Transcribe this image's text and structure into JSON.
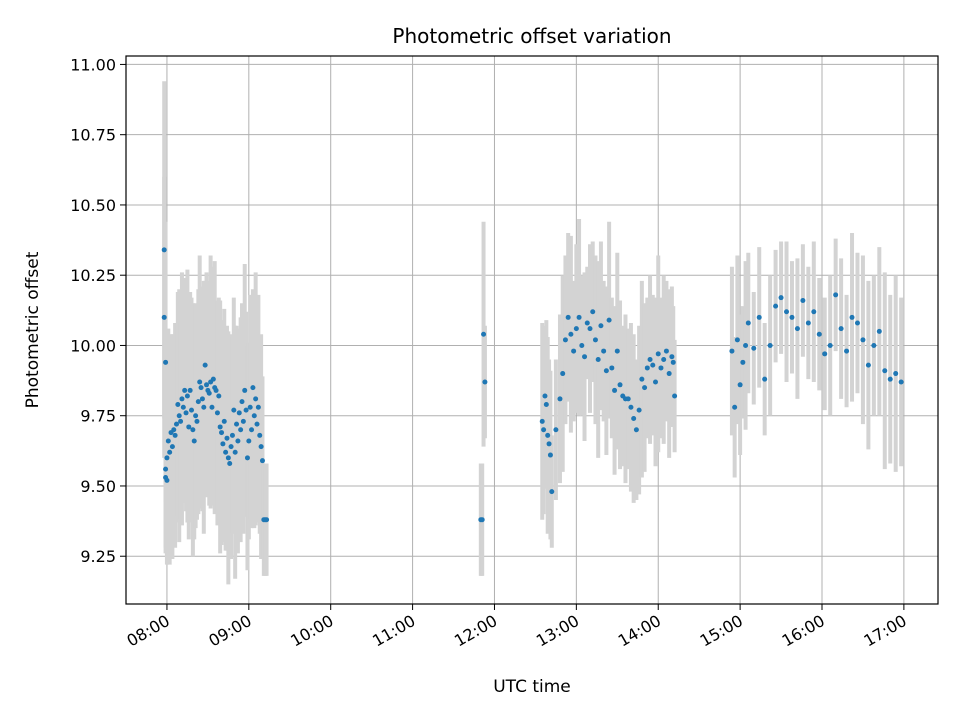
{
  "chart_data": {
    "type": "scatter",
    "title": "Photometric offset variation",
    "xlabel": "UTC time",
    "ylabel": "Photometric offset",
    "xlim": [
      "07:30",
      "17:25"
    ],
    "ylim": [
      9.08,
      11.03
    ],
    "x_ticks": [
      "08:00",
      "09:00",
      "10:00",
      "11:00",
      "12:00",
      "13:00",
      "14:00",
      "15:00",
      "16:00",
      "17:00"
    ],
    "y_ticks": [
      "9.25",
      "9.50",
      "9.75",
      "10.00",
      "10.25",
      "10.50",
      "10.75",
      "11.00"
    ],
    "grid": true,
    "marker_color": "#1f77b4",
    "errorbar_color": "#d3d3d3",
    "series": [
      {
        "x": [
          "07:58",
          "07:58",
          "07:59",
          "07:59",
          "07:59",
          "08:00",
          "08:00",
          "08:01",
          "08:02",
          "08:03",
          "08:04",
          "08:05",
          "08:06",
          "08:07",
          "08:08",
          "08:09",
          "08:10",
          "08:11",
          "08:12",
          "08:13",
          "08:14",
          "08:15",
          "08:16",
          "08:17",
          "08:18",
          "08:19",
          "08:20",
          "08:21",
          "08:22",
          "08:23",
          "08:24",
          "08:25",
          "08:26",
          "08:27",
          "08:28",
          "08:29",
          "08:30",
          "08:31",
          "08:32",
          "08:33",
          "08:34",
          "08:35",
          "08:36",
          "08:37",
          "08:38",
          "08:39",
          "08:40",
          "08:41",
          "08:42",
          "08:43",
          "08:44",
          "08:45",
          "08:46",
          "08:47",
          "08:48",
          "08:49",
          "08:50",
          "08:51",
          "08:52",
          "08:53",
          "08:54",
          "08:55",
          "08:56",
          "08:57",
          "08:58",
          "08:59",
          "09:00",
          "09:01",
          "09:02",
          "09:03",
          "09:04",
          "09:05",
          "09:06",
          "09:07",
          "09:08",
          "09:09",
          "09:10",
          "09:11",
          "09:12",
          "09:13",
          "11:50",
          "11:51",
          "11:52",
          "11:53",
          "12:35",
          "12:36",
          "12:37",
          "12:38",
          "12:39",
          "12:40",
          "12:41",
          "12:42",
          "12:45",
          "12:48",
          "12:50",
          "12:52",
          "12:54",
          "12:56",
          "12:58",
          "13:00",
          "13:02",
          "13:04",
          "13:06",
          "13:08",
          "13:10",
          "13:12",
          "13:14",
          "13:16",
          "13:18",
          "13:20",
          "13:22",
          "13:24",
          "13:26",
          "13:28",
          "13:30",
          "13:32",
          "13:34",
          "13:36",
          "13:38",
          "13:40",
          "13:42",
          "13:44",
          "13:46",
          "13:48",
          "13:50",
          "13:52",
          "13:54",
          "13:56",
          "13:58",
          "14:00",
          "14:02",
          "14:04",
          "14:06",
          "14:08",
          "14:10",
          "14:11",
          "14:12",
          "14:54",
          "14:56",
          "14:58",
          "15:00",
          "15:02",
          "15:04",
          "15:06",
          "15:10",
          "15:14",
          "15:18",
          "15:22",
          "15:26",
          "15:30",
          "15:34",
          "15:38",
          "15:42",
          "15:46",
          "15:50",
          "15:54",
          "15:58",
          "16:02",
          "16:06",
          "16:10",
          "16:14",
          "16:18",
          "16:22",
          "16:26",
          "16:30",
          "16:34",
          "16:38",
          "16:42",
          "16:46",
          "16:50",
          "16:54",
          "16:58"
        ],
        "y": [
          10.34,
          10.1,
          9.94,
          9.56,
          9.53,
          9.52,
          9.6,
          9.66,
          9.62,
          9.69,
          9.64,
          9.7,
          9.68,
          9.72,
          9.79,
          9.75,
          9.73,
          9.81,
          9.78,
          9.84,
          9.76,
          9.82,
          9.71,
          9.84,
          9.77,
          9.7,
          9.66,
          9.75,
          9.73,
          9.8,
          9.87,
          9.85,
          9.81,
          9.78,
          9.93,
          9.86,
          9.84,
          9.83,
          9.87,
          9.78,
          9.88,
          9.85,
          9.84,
          9.76,
          9.82,
          9.71,
          9.69,
          9.65,
          9.73,
          9.62,
          9.67,
          9.6,
          9.58,
          9.64,
          9.68,
          9.77,
          9.62,
          9.72,
          9.66,
          9.76,
          9.7,
          9.8,
          9.73,
          9.84,
          9.77,
          9.6,
          9.66,
          9.78,
          9.7,
          9.85,
          9.75,
          9.81,
          9.72,
          9.78,
          9.68,
          9.64,
          9.59,
          9.38,
          9.38,
          9.38,
          9.38,
          9.38,
          10.04,
          9.87,
          9.73,
          9.7,
          9.82,
          9.79,
          9.68,
          9.65,
          9.61,
          9.48,
          9.7,
          9.81,
          9.9,
          10.02,
          10.1,
          10.04,
          9.98,
          10.06,
          10.1,
          10.0,
          9.96,
          10.08,
          10.06,
          10.12,
          10.02,
          9.95,
          10.07,
          9.98,
          9.91,
          10.09,
          9.92,
          9.84,
          9.98,
          9.86,
          9.82,
          9.81,
          9.81,
          9.78,
          9.74,
          9.7,
          9.77,
          9.88,
          9.85,
          9.92,
          9.95,
          9.93,
          9.87,
          9.97,
          9.92,
          9.95,
          9.98,
          9.9,
          9.96,
          9.94,
          9.82,
          9.98,
          9.78,
          10.02,
          9.86,
          9.94,
          10.0,
          10.08,
          9.99,
          10.1,
          9.88,
          10.0,
          10.14,
          10.17,
          10.12,
          10.1,
          10.06,
          10.16,
          10.08,
          10.12,
          10.04,
          9.97,
          10.0,
          10.18,
          10.06,
          9.98,
          10.1,
          10.08,
          10.02,
          9.93,
          10.0,
          10.05,
          9.91,
          9.88,
          9.9,
          9.87
        ],
        "yerr": [
          0.6,
          0.5,
          0.5,
          0.3,
          0.25,
          0.3,
          0.35,
          0.4,
          0.4,
          0.35,
          0.4,
          0.3,
          0.4,
          0.35,
          0.4,
          0.45,
          0.35,
          0.45,
          0.3,
          0.4,
          0.35,
          0.45,
          0.4,
          0.35,
          0.4,
          0.45,
          0.35,
          0.4,
          0.35,
          0.4,
          0.45,
          0.35,
          0.4,
          0.45,
          0.3,
          0.4,
          0.35,
          0.4,
          0.45,
          0.35,
          0.4,
          0.45,
          0.3,
          0.4,
          0.35,
          0.45,
          0.4,
          0.35,
          0.4,
          0.35,
          0.4,
          0.45,
          0.3,
          0.4,
          0.35,
          0.4,
          0.45,
          0.35,
          0.4,
          0.3,
          0.4,
          0.35,
          0.4,
          0.45,
          0.35,
          0.4,
          0.35,
          0.4,
          0.35,
          0.35,
          0.4,
          0.45,
          0.35,
          0.4,
          0.35,
          0.4,
          0.3,
          0.2,
          0.2,
          0.2,
          0.2,
          0.2,
          0.4,
          0.2,
          0.35,
          0.3,
          0.25,
          0.3,
          0.35,
          0.3,
          0.3,
          0.2,
          0.25,
          0.3,
          0.35,
          0.3,
          0.3,
          0.35,
          0.25,
          0.3,
          0.35,
          0.25,
          0.3,
          0.2,
          0.3,
          0.25,
          0.3,
          0.35,
          0.3,
          0.25,
          0.3,
          0.35,
          0.25,
          0.3,
          0.35,
          0.3,
          0.25,
          0.3,
          0.25,
          0.3,
          0.3,
          0.25,
          0.3,
          0.35,
          0.3,
          0.25,
          0.3,
          0.25,
          0.3,
          0.35,
          0.25,
          0.3,
          0.25,
          0.3,
          0.25,
          0.2,
          0.2,
          0.3,
          0.25,
          0.3,
          0.25,
          0.2,
          0.3,
          0.25,
          0.2,
          0.25,
          0.2,
          0.25,
          0.2,
          0.2,
          0.25,
          0.2,
          0.25,
          0.2,
          0.2,
          0.25,
          0.2,
          0.2,
          0.25,
          0.2,
          0.25,
          0.2,
          0.3,
          0.25,
          0.3,
          0.3,
          0.25,
          0.3,
          0.35,
          0.3,
          0.35,
          0.3
        ]
      }
    ]
  }
}
